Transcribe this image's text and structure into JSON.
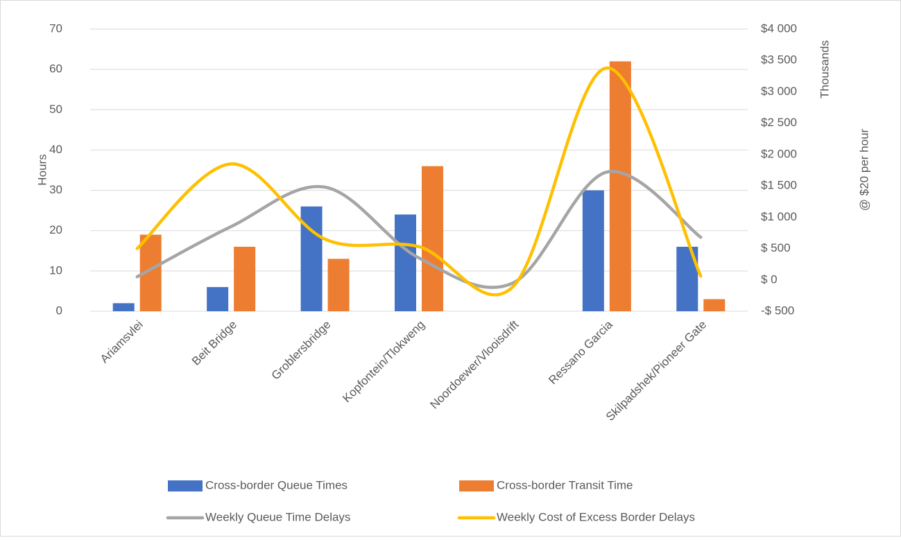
{
  "chart_data": {
    "type": "bar",
    "categories": [
      "Ariamsvlei",
      "Beit Bridge",
      "Groblersbridge",
      "Kopfontein/Tlokweng",
      "Noordoewer/Vlooisdrift",
      "Ressano Garcia",
      "Skilpadshek/Pioneer Gate"
    ],
    "series": [
      {
        "name": "Cross-border Queue Times",
        "type": "bar",
        "color": "#4472c4",
        "values": [
          2,
          6,
          26,
          24,
          null,
          30,
          16
        ]
      },
      {
        "name": "Cross-border Transit Time",
        "type": "bar",
        "color": "#ed7d31",
        "values": [
          19,
          16,
          13,
          36,
          null,
          62,
          3
        ]
      },
      {
        "name": "Weekly Queue Time Delays",
        "type": "line",
        "axis": "y2",
        "color": "#a5a5a5",
        "values": [
          50,
          850,
          1480,
          350,
          -50,
          1720,
          680
        ]
      },
      {
        "name": "Weekly Cost of Excess Border Delays",
        "type": "line",
        "axis": "y2",
        "color": "#ffc000",
        "values": [
          500,
          1850,
          650,
          530,
          -110,
          3380,
          60
        ]
      }
    ],
    "ylabel": "Hours",
    "y2label": "Thousands",
    "y2label2": "@ $20 per hour",
    "ylim": [
      0,
      70
    ],
    "yticks": [
      0,
      10,
      20,
      30,
      40,
      50,
      60,
      70
    ],
    "y2lim": [
      -500,
      4000
    ],
    "y2ticks": [
      {
        "value": -500,
        "label": "-$ 500"
      },
      {
        "value": 0,
        "label": "$ 0"
      },
      {
        "value": 500,
        "label": "$ 500"
      },
      {
        "value": 1000,
        "label": "$1 000"
      },
      {
        "value": 1500,
        "label": "$1 500"
      },
      {
        "value": 2000,
        "label": "$2 000"
      },
      {
        "value": 2500,
        "label": "$2 500"
      },
      {
        "value": 3000,
        "label": "$3 000"
      },
      {
        "value": 3500,
        "label": "$3 500"
      },
      {
        "value": 4000,
        "label": "$4 000"
      }
    ],
    "grid": true
  }
}
